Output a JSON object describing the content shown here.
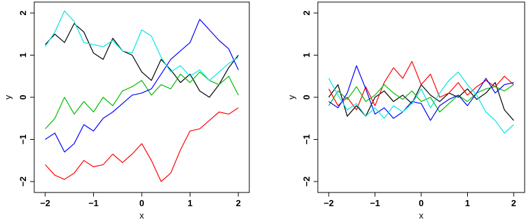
{
  "chart_data": [
    {
      "type": "line",
      "xlabel": "x",
      "ylabel": "y",
      "xlim": [
        -2,
        2
      ],
      "ylim": [
        -2,
        2
      ],
      "xticks": [
        -2,
        -1,
        0,
        1,
        2
      ],
      "yticks": [
        -2,
        -1,
        0,
        1,
        2
      ],
      "xtick_labels": [
        "−2",
        "−1",
        "0",
        "1",
        "2"
      ],
      "ytick_labels": [
        "−2",
        "−1",
        "0",
        "1",
        "2"
      ],
      "grid": false,
      "series": [
        {
          "color": "#000000",
          "x": [
            -2,
            -1.8,
            -1.6,
            -1.4,
            -1.2,
            -1.0,
            -0.8,
            -0.6,
            -0.4,
            -0.2,
            0,
            0.2,
            0.4,
            0.6,
            0.8,
            1.0,
            1.2,
            1.4,
            1.6,
            1.8,
            2
          ],
          "y": [
            1.25,
            1.5,
            1.3,
            1.75,
            1.55,
            1.05,
            0.9,
            1.4,
            1.1,
            1.0,
            0.6,
            0.4,
            0.9,
            0.65,
            0.35,
            0.55,
            0.15,
            0.0,
            0.3,
            0.7,
            1.0
          ]
        },
        {
          "color": "#ff0000",
          "x": [
            -2,
            -1.8,
            -1.6,
            -1.4,
            -1.2,
            -1.0,
            -0.8,
            -0.6,
            -0.4,
            -0.2,
            0,
            0.2,
            0.4,
            0.6,
            0.8,
            1.0,
            1.2,
            1.4,
            1.6,
            1.8,
            2
          ],
          "y": [
            -1.6,
            -1.85,
            -1.95,
            -1.8,
            -1.5,
            -1.65,
            -1.6,
            -1.35,
            -1.55,
            -1.35,
            -1.1,
            -1.5,
            -2.0,
            -1.8,
            -1.25,
            -0.8,
            -0.75,
            -0.55,
            -0.35,
            -0.4,
            -0.25
          ]
        },
        {
          "color": "#00bb00",
          "x": [
            -2,
            -1.8,
            -1.6,
            -1.4,
            -1.2,
            -1.0,
            -0.8,
            -0.6,
            -0.4,
            -0.2,
            0,
            0.2,
            0.4,
            0.6,
            0.8,
            1.0,
            1.2,
            1.4,
            1.6,
            1.8,
            2
          ],
          "y": [
            -0.75,
            -0.5,
            0.0,
            -0.4,
            -0.1,
            -0.35,
            0.0,
            -0.2,
            0.15,
            0.25,
            0.4,
            0.05,
            0.3,
            0.2,
            0.55,
            0.35,
            0.6,
            0.4,
            0.3,
            0.5,
            0.05
          ]
        },
        {
          "color": "#0000ff",
          "x": [
            -2,
            -1.8,
            -1.6,
            -1.4,
            -1.2,
            -1.0,
            -0.8,
            -0.6,
            -0.4,
            -0.2,
            0,
            0.2,
            0.4,
            0.6,
            0.8,
            1.0,
            1.2,
            1.4,
            1.6,
            1.8,
            2
          ],
          "y": [
            -1.0,
            -0.85,
            -1.3,
            -1.1,
            -0.65,
            -0.8,
            -0.5,
            -0.35,
            -0.15,
            0.05,
            0.1,
            0.2,
            0.55,
            0.9,
            1.1,
            1.3,
            1.85,
            1.6,
            1.35,
            1.15,
            0.65
          ]
        },
        {
          "color": "#00e5e5",
          "x": [
            -2,
            -1.8,
            -1.6,
            -1.4,
            -1.2,
            -1.0,
            -0.8,
            -0.6,
            -0.4,
            -0.2,
            0,
            0.2,
            0.4,
            0.6,
            0.8,
            1.0,
            1.2,
            1.4,
            1.6,
            1.8,
            2
          ],
          "y": [
            1.2,
            1.55,
            2.05,
            1.8,
            1.3,
            1.25,
            1.2,
            1.35,
            1.1,
            1.05,
            1.6,
            1.45,
            0.95,
            0.6,
            0.75,
            0.5,
            0.65,
            0.4,
            0.6,
            0.8,
            0.95
          ]
        }
      ]
    },
    {
      "type": "line",
      "xlabel": "x",
      "ylabel": "y",
      "xlim": [
        -2,
        2
      ],
      "ylim": [
        -2,
        2
      ],
      "xticks": [
        -2,
        -1,
        0,
        1,
        2
      ],
      "yticks": [
        -2,
        -1,
        0,
        1,
        2
      ],
      "xtick_labels": [
        "−2",
        "−1",
        "0",
        "1",
        "2"
      ],
      "ytick_labels": [
        "−2",
        "−1",
        "0",
        "1",
        "2"
      ],
      "grid": false,
      "series": [
        {
          "color": "#000000",
          "x": [
            -2,
            -1.8,
            -1.6,
            -1.4,
            -1.2,
            -1.0,
            -0.8,
            -0.6,
            -0.4,
            -0.2,
            0,
            0.2,
            0.4,
            0.6,
            0.8,
            1.0,
            1.2,
            1.4,
            1.6,
            1.8,
            2
          ],
          "y": [
            0.0,
            0.3,
            -0.45,
            -0.2,
            -0.45,
            0.0,
            0.15,
            -0.1,
            0.05,
            -0.15,
            0.3,
            0.05,
            -0.1,
            0.1,
            0.0,
            0.2,
            -0.05,
            0.1,
            0.35,
            -0.3,
            -0.55
          ]
        },
        {
          "color": "#ff0000",
          "x": [
            -2,
            -1.8,
            -1.6,
            -1.4,
            -1.2,
            -1.0,
            -0.8,
            -0.6,
            -0.4,
            -0.2,
            0,
            0.2,
            0.4,
            0.6,
            0.8,
            1.0,
            1.2,
            1.4,
            1.6,
            1.8,
            2
          ],
          "y": [
            0.2,
            -0.2,
            0.0,
            -0.3,
            0.25,
            -0.2,
            0.35,
            0.7,
            0.45,
            0.85,
            0.3,
            0.55,
            0.0,
            0.1,
            0.35,
            0.05,
            0.25,
            0.4,
            0.25,
            0.5,
            0.3
          ]
        },
        {
          "color": "#00bb00",
          "x": [
            -2,
            -1.8,
            -1.6,
            -1.4,
            -1.2,
            -1.0,
            -0.8,
            -0.6,
            -0.4,
            -0.2,
            0,
            0.2,
            0.4,
            0.6,
            0.8,
            1.0,
            1.2,
            1.4,
            1.6,
            1.8,
            2
          ],
          "y": [
            -0.2,
            0.15,
            -0.05,
            0.25,
            -0.1,
            0.05,
            0.3,
            0.1,
            -0.05,
            0.15,
            -0.1,
            0.0,
            -0.35,
            -0.15,
            0.05,
            -0.1,
            0.1,
            0.2,
            0.25,
            0.15,
            0.3
          ]
        },
        {
          "color": "#0000ff",
          "x": [
            -2,
            -1.8,
            -1.6,
            -1.4,
            -1.2,
            -1.0,
            -0.8,
            -0.6,
            -0.4,
            -0.2,
            0,
            0.2,
            0.4,
            0.6,
            0.8,
            1.0,
            1.2,
            1.4,
            1.6,
            1.8,
            2
          ],
          "y": [
            -0.1,
            -0.25,
            0.1,
            0.75,
            0.2,
            -0.4,
            -0.25,
            -0.5,
            -0.35,
            -0.1,
            -0.15,
            -0.55,
            -0.2,
            -0.05,
            0.05,
            -0.2,
            0.1,
            0.45,
            0.1,
            0.3,
            0.35
          ]
        },
        {
          "color": "#00e5e5",
          "x": [
            -2,
            -1.8,
            -1.6,
            -1.4,
            -1.2,
            -1.0,
            -0.8,
            -0.6,
            -0.4,
            -0.2,
            0,
            0.2,
            0.4,
            0.6,
            0.8,
            1.0,
            1.2,
            1.4,
            1.6,
            1.8,
            2
          ],
          "y": [
            0.45,
            0.05,
            -0.3,
            -0.15,
            -0.45,
            -0.25,
            -0.5,
            -0.2,
            -0.35,
            -0.15,
            0.2,
            -0.25,
            0.1,
            0.4,
            0.6,
            0.3,
            0.05,
            -0.35,
            -0.55,
            -0.85,
            -0.65
          ]
        }
      ]
    }
  ]
}
